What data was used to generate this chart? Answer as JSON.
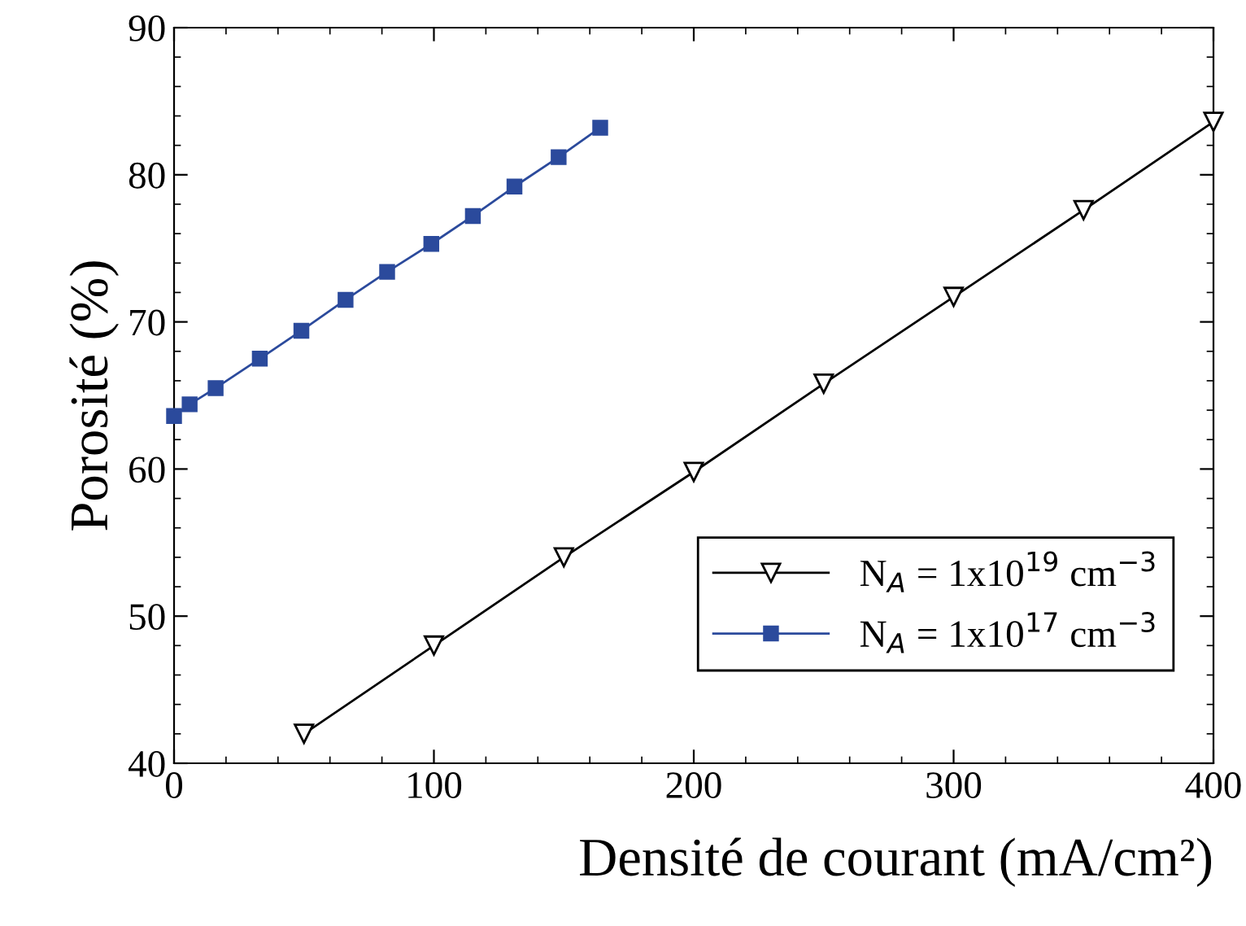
{
  "chart_data": {
    "type": "line",
    "xlabel": "Densité de courant (mA/cm²)",
    "ylabel": "Porosité (%)",
    "xlim": [
      0,
      400
    ],
    "xticks": [
      0,
      100,
      200,
      300,
      400
    ],
    "ylim": [
      40,
      90
    ],
    "yticks": [
      40,
      50,
      60,
      70,
      80,
      90
    ],
    "grid": false,
    "legend": "bottom right",
    "line_style": "solid",
    "series": [
      {
        "name": "N$_{A}$ = 1x10$^{19}$ cm$^{−3}$",
        "color": "#000000",
        "marker": "triangle",
        "x": [
          50,
          100,
          150,
          200,
          250,
          300,
          350,
          400
        ],
        "values": [
          42,
          48,
          54,
          59.8,
          65.8,
          71.7,
          77.6,
          83.6
        ]
      },
      {
        "name": "N$_{A}$ = 1x10$^{17}$ cm$^{−3}$",
        "color": "#2b4a9c",
        "marker": "square",
        "x": [
          0,
          6,
          16,
          33,
          49,
          66,
          82,
          99,
          115,
          131,
          148,
          164
        ],
        "values": [
          63.6,
          64.4,
          65.5,
          67.5,
          69.4,
          71.5,
          73.4,
          75.3,
          77.2,
          79.2,
          81.2,
          83.2
        ]
      }
    ]
  }
}
